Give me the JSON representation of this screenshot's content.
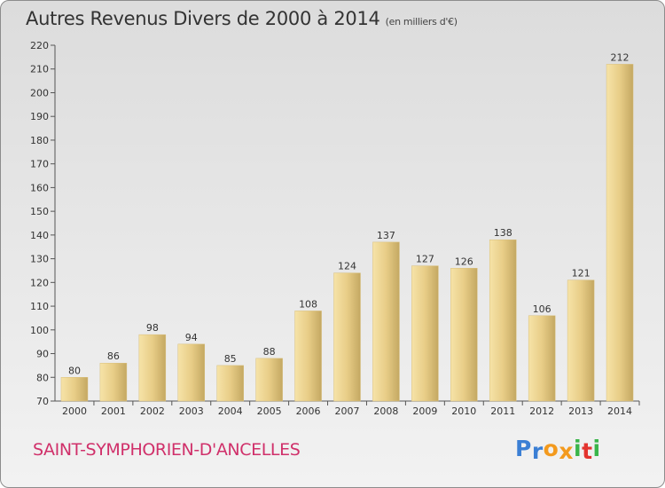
{
  "chart_data": {
    "type": "bar",
    "title": "Autres Revenus Divers de 2000 à 2014",
    "subtitle": "(en milliers d'€)",
    "categories": [
      "2000",
      "2001",
      "2002",
      "2003",
      "2004",
      "2005",
      "2006",
      "2007",
      "2008",
      "2009",
      "2010",
      "2011",
      "2012",
      "2013",
      "2014"
    ],
    "values": [
      80,
      86,
      98,
      94,
      85,
      88,
      108,
      124,
      137,
      127,
      126,
      138,
      106,
      121,
      212
    ],
    "ylim": [
      70,
      220
    ],
    "yticks": [
      70,
      80,
      90,
      100,
      110,
      120,
      130,
      140,
      150,
      160,
      170,
      180,
      190,
      200,
      210,
      220
    ],
    "xlabel": "",
    "ylabel": "",
    "grid": false,
    "legend": "none",
    "bar_color": "#e9cf88"
  },
  "footer": {
    "commune": "SAINT-SYMPHORIEN-D'ANCELLES",
    "brand_letters": [
      "P",
      "r",
      "o",
      "x",
      "i",
      "t",
      "i"
    ],
    "brand_colors": [
      "#3b7fd4",
      "#3b7fd4",
      "#f39a1e",
      "#f39a1e",
      "#3ab54a",
      "#e3342f",
      "#3ab54a"
    ]
  },
  "colors": {
    "commune_text": "#d0306a"
  }
}
